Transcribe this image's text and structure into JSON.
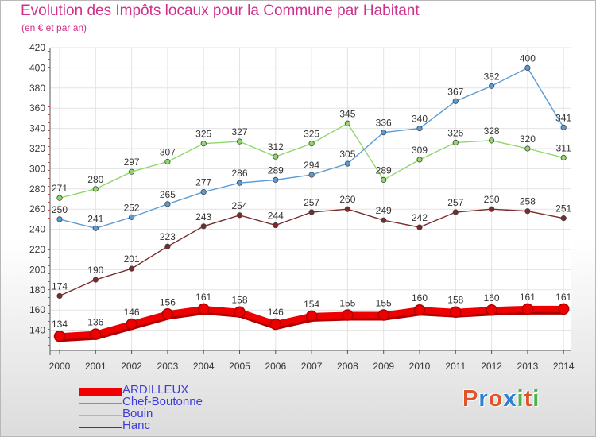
{
  "title": "Evolution des Impôts locaux pour la Commune par Habitant",
  "subtitle": "(en € et par an)",
  "brand": {
    "text": "Proxiti",
    "letters": [
      "P",
      "r",
      "o",
      "x",
      "i",
      "t",
      "i"
    ],
    "colors": [
      "#e0542a",
      "#2b7fd4",
      "#e0542a",
      "#2b7fd4",
      "#49b54a",
      "#e0542a",
      "#49b54a"
    ]
  },
  "chart_data": {
    "type": "line",
    "title": "Evolution des Impôts locaux pour la Commune par Habitant",
    "subtitle": "(en € et par an)",
    "xlabel": "",
    "ylabel": "",
    "ylim": [
      120,
      420
    ],
    "yticks": [
      140,
      160,
      180,
      200,
      220,
      240,
      260,
      280,
      300,
      320,
      340,
      360,
      380,
      400,
      420
    ],
    "grid": true,
    "legend_position": "bottom-left",
    "x": [
      "2000",
      "2001",
      "2002",
      "2003",
      "2004",
      "2005",
      "2006",
      "2007",
      "2008",
      "2009",
      "2010",
      "2011",
      "2012",
      "2013",
      "2014"
    ],
    "series": [
      {
        "name": "Bouin",
        "color": "#8fd86a",
        "values": [
          271,
          280,
          297,
          307,
          325,
          327,
          312,
          325,
          345,
          289,
          309,
          326,
          328,
          320,
          311
        ]
      },
      {
        "name": "Chef-Boutonne",
        "color": "#5b9bd5",
        "values": [
          250,
          241,
          252,
          265,
          277,
          286,
          289,
          294,
          305,
          336,
          340,
          367,
          382,
          400,
          341
        ]
      },
      {
        "name": "Hanc",
        "color": "#7a2a2a",
        "values": [
          174,
          190,
          201,
          223,
          243,
          254,
          244,
          257,
          260,
          249,
          242,
          257,
          260,
          258,
          251
        ]
      },
      {
        "name": "ARDILLEUX",
        "color": "#ee0000",
        "values": [
          134,
          136,
          146,
          156,
          161,
          158,
          146,
          154,
          155,
          155,
          160,
          158,
          160,
          161,
          161
        ]
      }
    ],
    "legend_order": [
      "ARDILLEUX",
      "Chef-Boutonne",
      "Bouin",
      "Hanc"
    ]
  }
}
